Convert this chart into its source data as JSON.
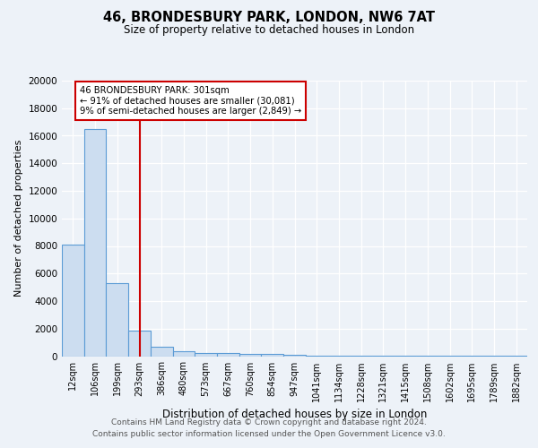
{
  "title1": "46, BRONDESBURY PARK, LONDON, NW6 7AT",
  "title2": "Size of property relative to detached houses in London",
  "xlabel": "Distribution of detached houses by size in London",
  "ylabel": "Number of detached properties",
  "categories": [
    "12sqm",
    "106sqm",
    "199sqm",
    "293sqm",
    "386sqm",
    "480sqm",
    "573sqm",
    "667sqm",
    "760sqm",
    "854sqm",
    "947sqm",
    "1041sqm",
    "1134sqm",
    "1228sqm",
    "1321sqm",
    "1415sqm",
    "1508sqm",
    "1602sqm",
    "1695sqm",
    "1789sqm",
    "1882sqm"
  ],
  "bar_heights": [
    8100,
    16500,
    5300,
    1850,
    700,
    330,
    230,
    210,
    190,
    160,
    130,
    50,
    40,
    30,
    25,
    20,
    15,
    12,
    10,
    8,
    5
  ],
  "bar_color": "#ccddf0",
  "bar_edge_color": "#5b9bd5",
  "vline_x_index": 3,
  "vline_color": "#cc0000",
  "annotation_line1": "46 BRONDESBURY PARK: 301sqm",
  "annotation_line2": "← 91% of detached houses are smaller (30,081)",
  "annotation_line3": "9% of semi-detached houses are larger (2,849) →",
  "annotation_border_color": "#cc0000",
  "ylim": [
    0,
    20000
  ],
  "yticks": [
    0,
    2000,
    4000,
    6000,
    8000,
    10000,
    12000,
    14000,
    16000,
    18000,
    20000
  ],
  "footer_line1": "Contains HM Land Registry data © Crown copyright and database right 2024.",
  "footer_line2": "Contains public sector information licensed under the Open Government Licence v3.0.",
  "bg_color": "#edf2f8",
  "grid_color": "#ffffff",
  "title1_fontsize": 10.5,
  "title2_fontsize": 8.5,
  "ylabel_fontsize": 8,
  "xlabel_fontsize": 8.5,
  "tick_fontsize": 7.5,
  "xtick_fontsize": 7,
  "footer_fontsize": 6.5
}
